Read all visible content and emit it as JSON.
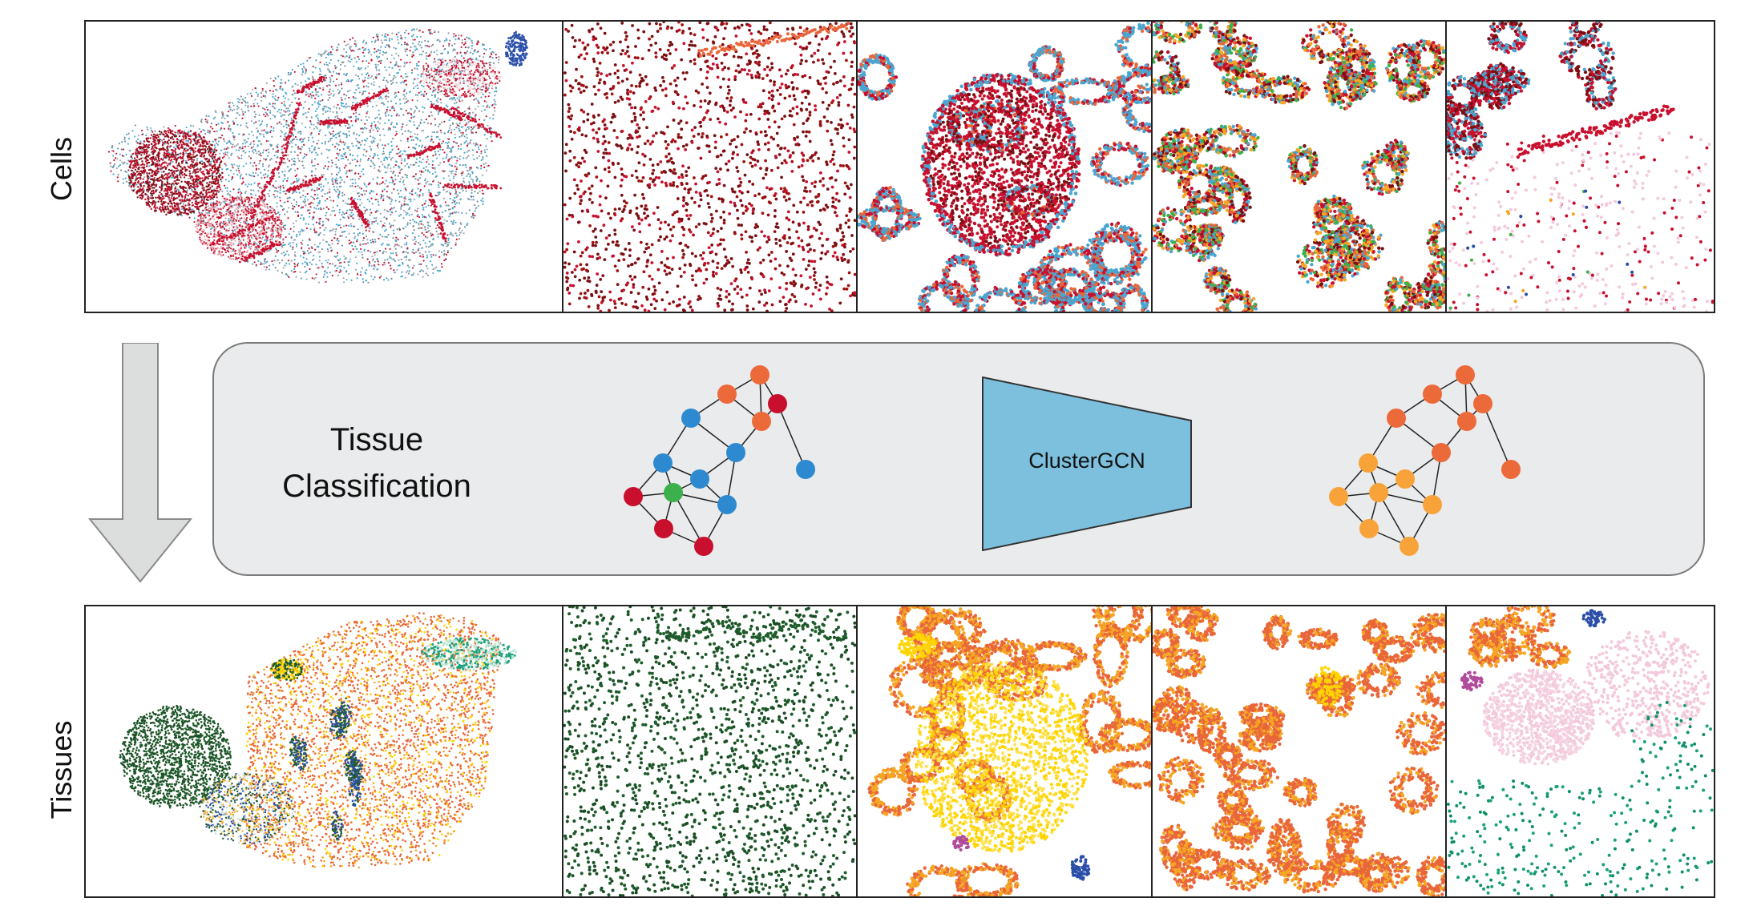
{
  "labels": {
    "cells": "Cells",
    "tissues": "Tissues"
  },
  "method": {
    "title_line1": "Tissue",
    "title_line2": "Classification",
    "model": "ClusterGCN"
  },
  "colors": {
    "dark_red": "#7a0f12",
    "red": "#c8102e",
    "blue_teal": "#4aa6d0",
    "dark_green": "#1e5c2b",
    "orange": "#e8663a",
    "light_orange": "#f5a623",
    "yellow": "#ffd400",
    "pink": "#f3c9dc",
    "teal_green": "#1aa07a",
    "purple": "#b04a9a",
    "navy": "#2b4fa8",
    "node_blue": "#2e8ad0",
    "node_green": "#3cb04a",
    "node_orange": "#ec6a3a",
    "node_light_orange": "#f7a33a",
    "node_crimson": "#c8102e",
    "trapezoid": "#7cc0de",
    "panel_bg": "#eaebec",
    "arrow_gray": "#dcdddd"
  }
}
